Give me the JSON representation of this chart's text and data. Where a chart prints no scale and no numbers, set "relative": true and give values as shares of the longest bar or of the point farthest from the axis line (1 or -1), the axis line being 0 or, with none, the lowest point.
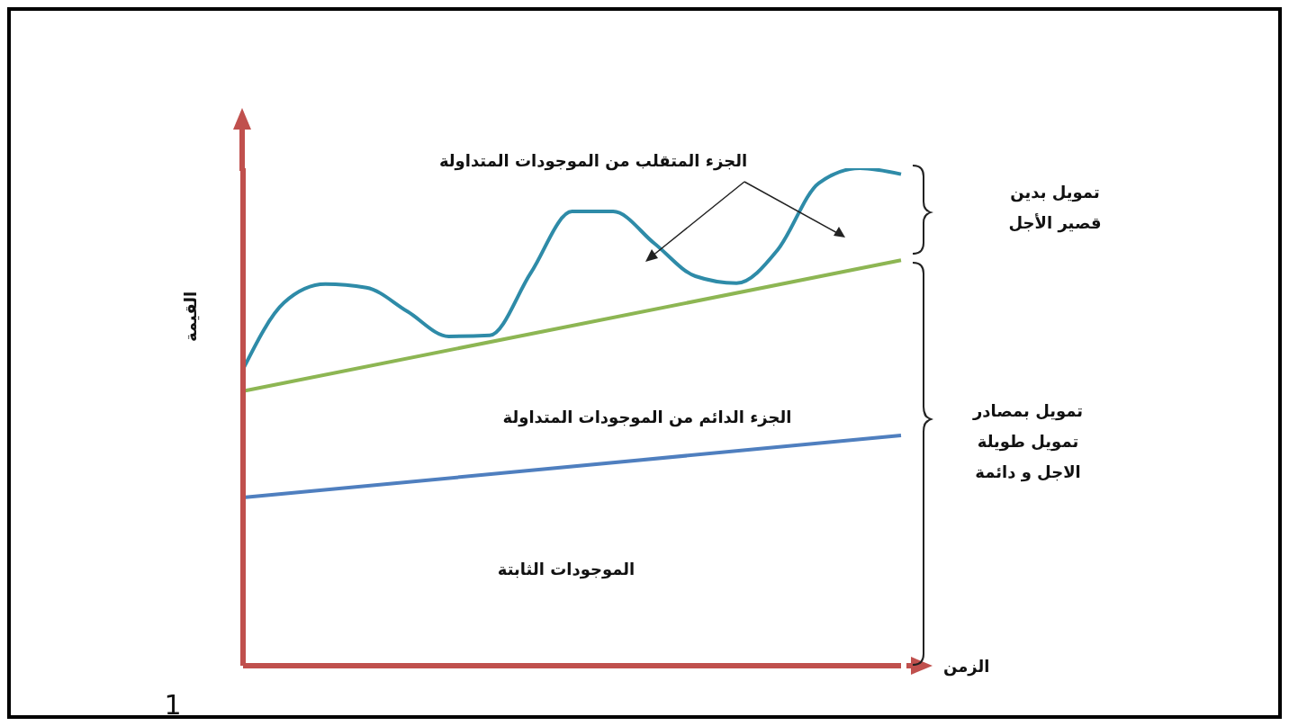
{
  "chart_data": {
    "type": "line",
    "relative": true,
    "xlabel": "الزمن",
    "ylabel": "القيمة",
    "categories": [
      null,
      null,
      null,
      null,
      null,
      null,
      null,
      null,
      null,
      null,
      null,
      null,
      null,
      null,
      null,
      null,
      null
    ],
    "series": [
      {
        "color": "#2e8ba8",
        "values": [
          0.596,
          0.73,
          0.767,
          0.76,
          0.712,
          0.662,
          0.664,
          0.79,
          0.913,
          0.913,
          0.849,
          0.783,
          0.769,
          0.836,
          0.97,
          1,
          0.988
        ]
      },
      {
        "color": "#8db653",
        "values": [
          0.552,
          null,
          null,
          null,
          null,
          null,
          null,
          null,
          null,
          null,
          null,
          null,
          null,
          null,
          null,
          null,
          0.815
        ]
      },
      {
        "color": "#4f7fbf",
        "values": [
          0.338,
          null,
          null,
          null,
          null,
          null,
          null,
          null,
          null,
          null,
          null,
          null,
          null,
          null,
          null,
          null,
          0.463
        ]
      }
    ],
    "annotations": [
      "الجزء المتقلب من الموجودات المتداولة",
      "الجزء الدائم من الموجودات المتداولة",
      "الموجودات الثابتة",
      "تمويل بدين\nقصير الأجل",
      "تمويل بمصادر\nتمويل طويلة\nالاجل و دائمة",
      "1"
    ]
  }
}
